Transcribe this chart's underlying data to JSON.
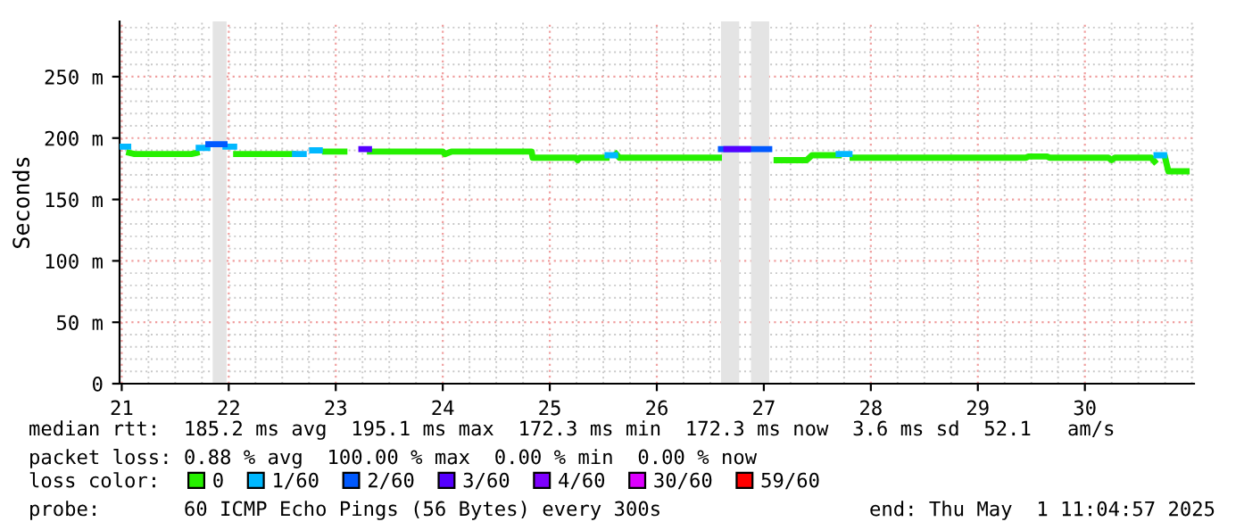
{
  "chart_data": {
    "type": "line",
    "ylabel": "Seconds",
    "legend_title": "loss color:",
    "legend": "bottom",
    "grid": true,
    "xlim": [
      21.48,
      31.52
    ],
    "ylim": [
      0,
      295
    ],
    "xticks": [
      {
        "value": 21.5,
        "label": "21"
      },
      {
        "value": 22.5,
        "label": "22"
      },
      {
        "value": 23.5,
        "label": "23"
      },
      {
        "value": 24.5,
        "label": "24"
      },
      {
        "value": 25.5,
        "label": "25"
      },
      {
        "value": 26.5,
        "label": "26"
      },
      {
        "value": 27.5,
        "label": "27"
      },
      {
        "value": 28.5,
        "label": "28"
      },
      {
        "value": 29.5,
        "label": "29"
      },
      {
        "value": 30.5,
        "label": "30"
      }
    ],
    "yticks": [
      0,
      {
        "value": 50,
        "label": "50 m"
      },
      {
        "value": 100,
        "label": "100 m"
      },
      {
        "value": 150,
        "label": "150 m"
      },
      {
        "value": 200,
        "label": "200 m"
      },
      {
        "value": 250,
        "label": "250 m"
      }
    ],
    "bands": [
      {
        "axis": "x",
        "from": 22.35,
        "to": 22.48,
        "color": "#e4e4e4"
      },
      {
        "axis": "x",
        "from": 27.1,
        "to": 27.27,
        "color": "#e4e4e4"
      },
      {
        "axis": "x",
        "from": 27.38,
        "to": 27.55,
        "color": "#e4e4e4"
      }
    ],
    "series": [
      {
        "name": "0",
        "color": "#26f000",
        "x": [
          21.57,
          21.62,
          22.15,
          22.2,
          22.21,
          22.57,
          23.1,
          23.11,
          23.4,
          23.58,
          23.59,
          23.82,
          24.5,
          24.52,
          24.58,
          25.33,
          25.34,
          25.74,
          25.76,
          25.78,
          26.03,
          26.04,
          26.12,
          26.15,
          27.08,
          27.09,
          27.62,
          27.9,
          27.95,
          28.2,
          28.21,
          28.33,
          29.95,
          29.97,
          30.15,
          30.17,
          30.72,
          30.75,
          30.78,
          31.12,
          31.15,
          31.17,
          31.25,
          31.28,
          31.45
        ],
        "values": [
          188,
          187,
          187,
          188,
          null,
          187,
          187,
          null,
          189,
          189,
          null,
          189,
          189,
          187,
          189,
          189,
          184,
          184,
          182,
          184,
          184,
          null,
          187,
          184,
          184,
          null,
          182,
          182,
          186,
          186,
          null,
          184,
          184,
          185,
          185,
          184,
          184,
          182,
          184,
          184,
          181,
          null,
          184,
          173,
          173
        ]
      },
      {
        "name": "1/60",
        "color": "#00b8ff",
        "x": [
          21.49,
          21.56,
          21.57,
          22.22,
          22.3,
          22.31,
          22.47,
          22.55,
          22.56,
          23.12,
          23.2,
          23.21,
          23.28,
          23.35,
          23.36,
          26.04,
          26.11,
          26.12,
          28.2,
          28.3,
          28.31,
          31.17,
          31.24
        ],
        "values": [
          193,
          193,
          null,
          192,
          192,
          null,
          193,
          193,
          null,
          187,
          187,
          null,
          190,
          190,
          null,
          186,
          186,
          null,
          187,
          187,
          null,
          186,
          186
        ]
      },
      {
        "name": "2/60",
        "color": "#0059ff",
        "x": [
          22.31,
          22.46,
          22.47,
          27.1,
          27.55
        ],
        "values": [
          195,
          195,
          null,
          191,
          191
        ]
      },
      {
        "name": "3/60",
        "color": "#5500ff",
        "x": [
          23.74,
          23.81,
          23.82,
          27.15,
          27.35
        ],
        "values": [
          191,
          191,
          null,
          191,
          191
        ]
      },
      {
        "name": "4/60",
        "color": "#7e00ff"
      },
      {
        "name": "30/60",
        "color": "#dd00ff"
      },
      {
        "name": "59/60",
        "color": "#ff0000"
      }
    ],
    "annotations": [
      "median rtt:  185.2 ms avg  195.1 ms max  172.3 ms min  172.3 ms now  3.6 ms sd  52.1   am/s",
      "packet loss: 0.88 % avg  100.00 % max  0.00 % min  0.00 % now",
      "probe:       60 ICMP Echo Pings (56 Bytes) every 300s",
      "end: Thu May  1 11:04:57 2025"
    ]
  }
}
